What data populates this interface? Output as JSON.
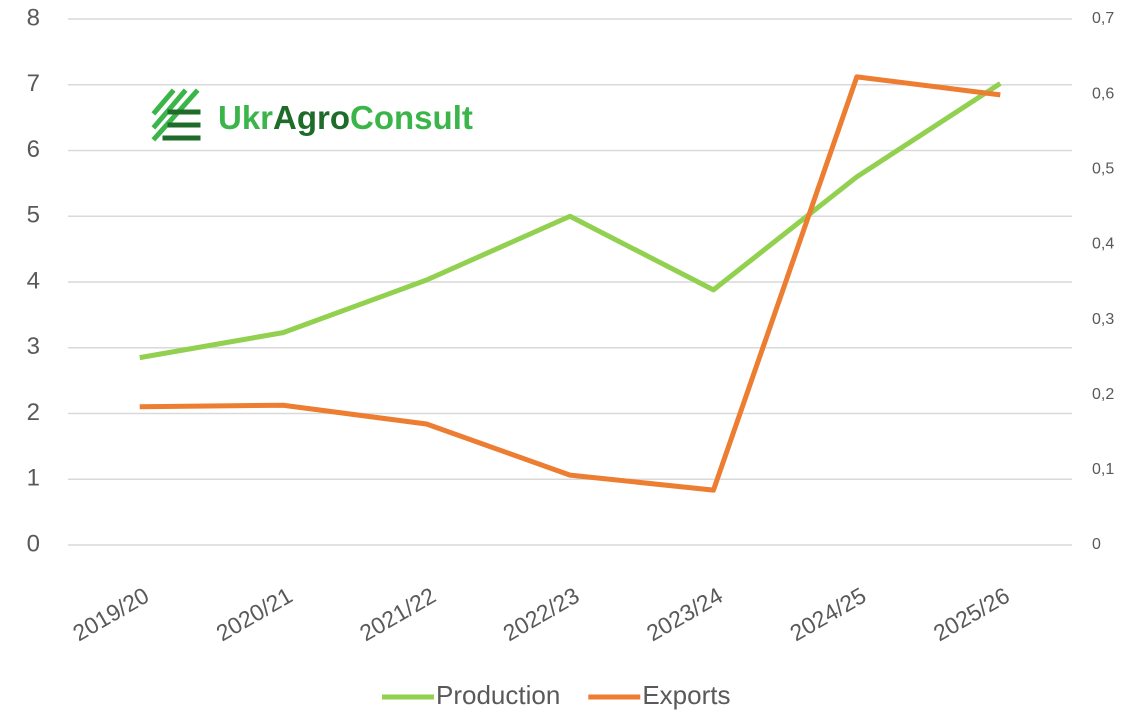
{
  "chart_data": {
    "type": "line",
    "logo": [
      "Ukr",
      "Agro",
      "Consult"
    ],
    "categories": [
      "2019/20",
      "2020/21",
      "2021/22",
      "2022/23",
      "2023/24",
      "2024/25",
      "2025/26"
    ],
    "series": [
      {
        "name": "Production",
        "color": "#92d050",
        "values": [
          2.85,
          3.23,
          4.03,
          5.0,
          3.88,
          5.6,
          7.02
        ]
      },
      {
        "name": "Exports",
        "color": "#ed7d31",
        "axis": "y2",
        "values": [
          0.184,
          0.186,
          0.161,
          0.093,
          0.073,
          0.623,
          0.599
        ]
      }
    ],
    "ylim": [
      0,
      8
    ],
    "yticks": [
      0,
      1,
      2,
      3,
      4,
      5,
      6,
      7,
      8
    ],
    "y2lim": [
      0,
      0.7
    ],
    "y2ticks": [
      0,
      {
        "value": 0.1,
        "label": "0,1"
      },
      {
        "value": 0.2,
        "label": "0,2"
      },
      {
        "value": 0.3,
        "label": "0,3"
      },
      {
        "value": 0.4,
        "label": "0,4"
      },
      {
        "value": 0.5,
        "label": "0,5"
      },
      {
        "value": 0.6,
        "label": "0,6"
      },
      {
        "value": 0.7,
        "label": "0,7"
      }
    ],
    "grid": true,
    "legend": "bottom"
  }
}
